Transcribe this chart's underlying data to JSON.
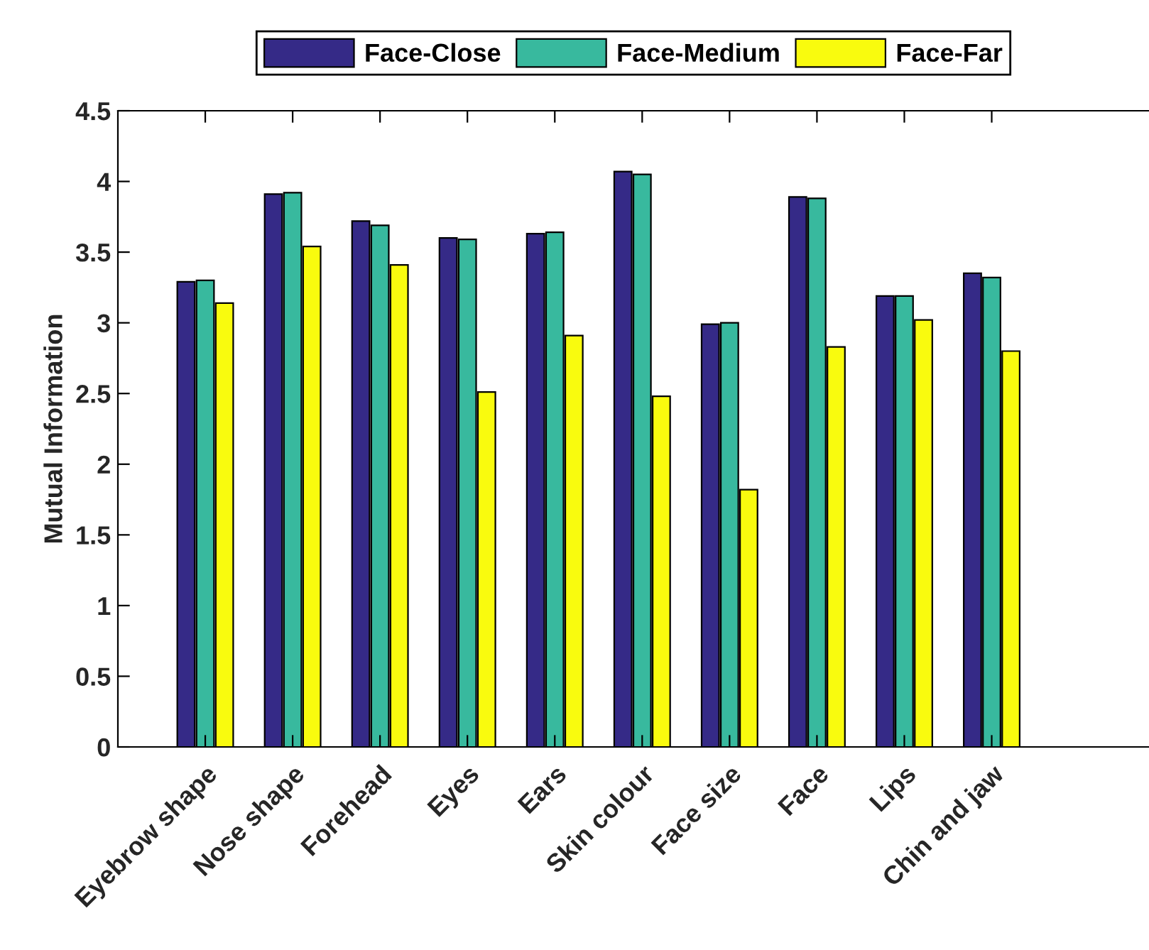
{
  "chart_data": {
    "type": "bar",
    "ylabel": "Mutual Information",
    "categories": [
      "Eyebrow shape",
      "Nose shape",
      "Forehead",
      "Eyes",
      "Ears",
      "Skin colour",
      "Face size",
      "Face",
      "Lips",
      "Chin and jaw"
    ],
    "series": [
      {
        "name": "Face-Close",
        "color": "#352a87",
        "values": [
          3.29,
          3.91,
          3.72,
          3.6,
          3.63,
          4.07,
          2.99,
          3.89,
          3.19,
          3.35
        ]
      },
      {
        "name": "Face-Medium",
        "color": "#38b99e",
        "values": [
          3.3,
          3.92,
          3.69,
          3.59,
          3.64,
          4.05,
          3.0,
          3.88,
          3.19,
          3.32
        ]
      },
      {
        "name": "Face-Far",
        "color": "#f9fb0e",
        "values": [
          3.14,
          3.54,
          3.41,
          2.51,
          2.91,
          2.48,
          1.82,
          2.83,
          3.02,
          2.8
        ]
      }
    ],
    "ylim": [
      0,
      4.5
    ],
    "yticks": [
      0,
      0.5,
      1,
      1.5,
      2,
      2.5,
      3,
      3.5,
      4,
      4.5
    ],
    "grid": false,
    "legend": "top"
  }
}
